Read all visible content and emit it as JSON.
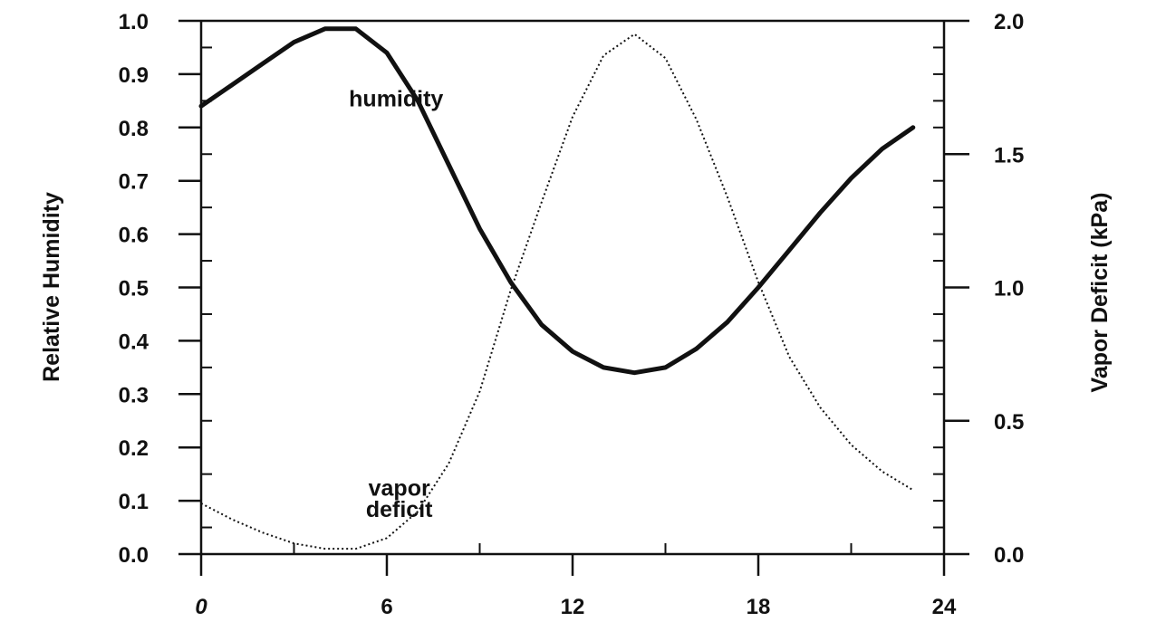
{
  "chart_data": {
    "type": "line",
    "title": "",
    "xlabel": "",
    "ylabel": "Relative Humidity",
    "y2label": "Vapor Deficit (kPa)",
    "xlim": [
      0,
      24
    ],
    "ylim": [
      0,
      1
    ],
    "y2lim": [
      0,
      2
    ],
    "x_ticks": [
      0,
      6,
      12,
      18,
      24
    ],
    "x_tick_labels": [
      "0",
      "6",
      "12",
      "18",
      "24"
    ],
    "y_ticks": [
      0.0,
      0.1,
      0.2,
      0.3,
      0.4,
      0.5,
      0.6,
      0.7,
      0.8,
      0.9,
      1.0
    ],
    "y_tick_labels": [
      "0.0",
      "0.1",
      "0.2",
      "0.3",
      "0.4",
      "0.5",
      "0.6",
      "0.7",
      "0.8",
      "0.9",
      "1.0"
    ],
    "y2_ticks": [
      0.0,
      0.5,
      1.0,
      1.5,
      2.0
    ],
    "y2_tick_labels": [
      "0.0",
      "0.5",
      "1.0",
      "1.5",
      "2.0"
    ],
    "grid": false,
    "series": [
      {
        "name": "humidity",
        "axis": "left",
        "style": "solid-thick",
        "x": [
          0,
          1,
          2,
          3,
          4,
          5,
          6,
          7,
          8,
          9,
          10,
          11,
          12,
          13,
          14,
          15,
          16,
          17,
          18,
          19,
          20,
          21,
          22,
          23
        ],
        "values": [
          0.84,
          0.88,
          0.92,
          0.96,
          0.985,
          0.985,
          0.94,
          0.85,
          0.73,
          0.61,
          0.51,
          0.43,
          0.38,
          0.35,
          0.34,
          0.35,
          0.385,
          0.435,
          0.5,
          0.57,
          0.64,
          0.705,
          0.76,
          0.8
        ]
      },
      {
        "name": "vapor deficit",
        "axis": "right",
        "style": "dotted",
        "x": [
          0,
          1,
          2,
          3,
          4,
          5,
          6,
          7,
          8,
          9,
          10,
          11,
          12,
          13,
          14,
          15,
          16,
          17,
          18,
          19,
          20,
          21,
          22,
          23
        ],
        "values": [
          0.19,
          0.13,
          0.08,
          0.04,
          0.02,
          0.02,
          0.06,
          0.16,
          0.34,
          0.61,
          0.99,
          1.32,
          1.64,
          1.87,
          1.95,
          1.86,
          1.63,
          1.34,
          1.02,
          0.74,
          0.55,
          0.41,
          0.31,
          0.24
        ]
      }
    ],
    "annotations": [
      {
        "text": "humidity",
        "x": 6.3,
        "y": 0.855,
        "axis": "left"
      },
      {
        "text": "vapor",
        "x": 6.4,
        "y": 0.125,
        "axis": "left"
      },
      {
        "text": "deficit",
        "x": 6.4,
        "y": 0.085,
        "axis": "left"
      }
    ],
    "colors": {
      "ink": "#111111",
      "background": "#ffffff"
    }
  }
}
